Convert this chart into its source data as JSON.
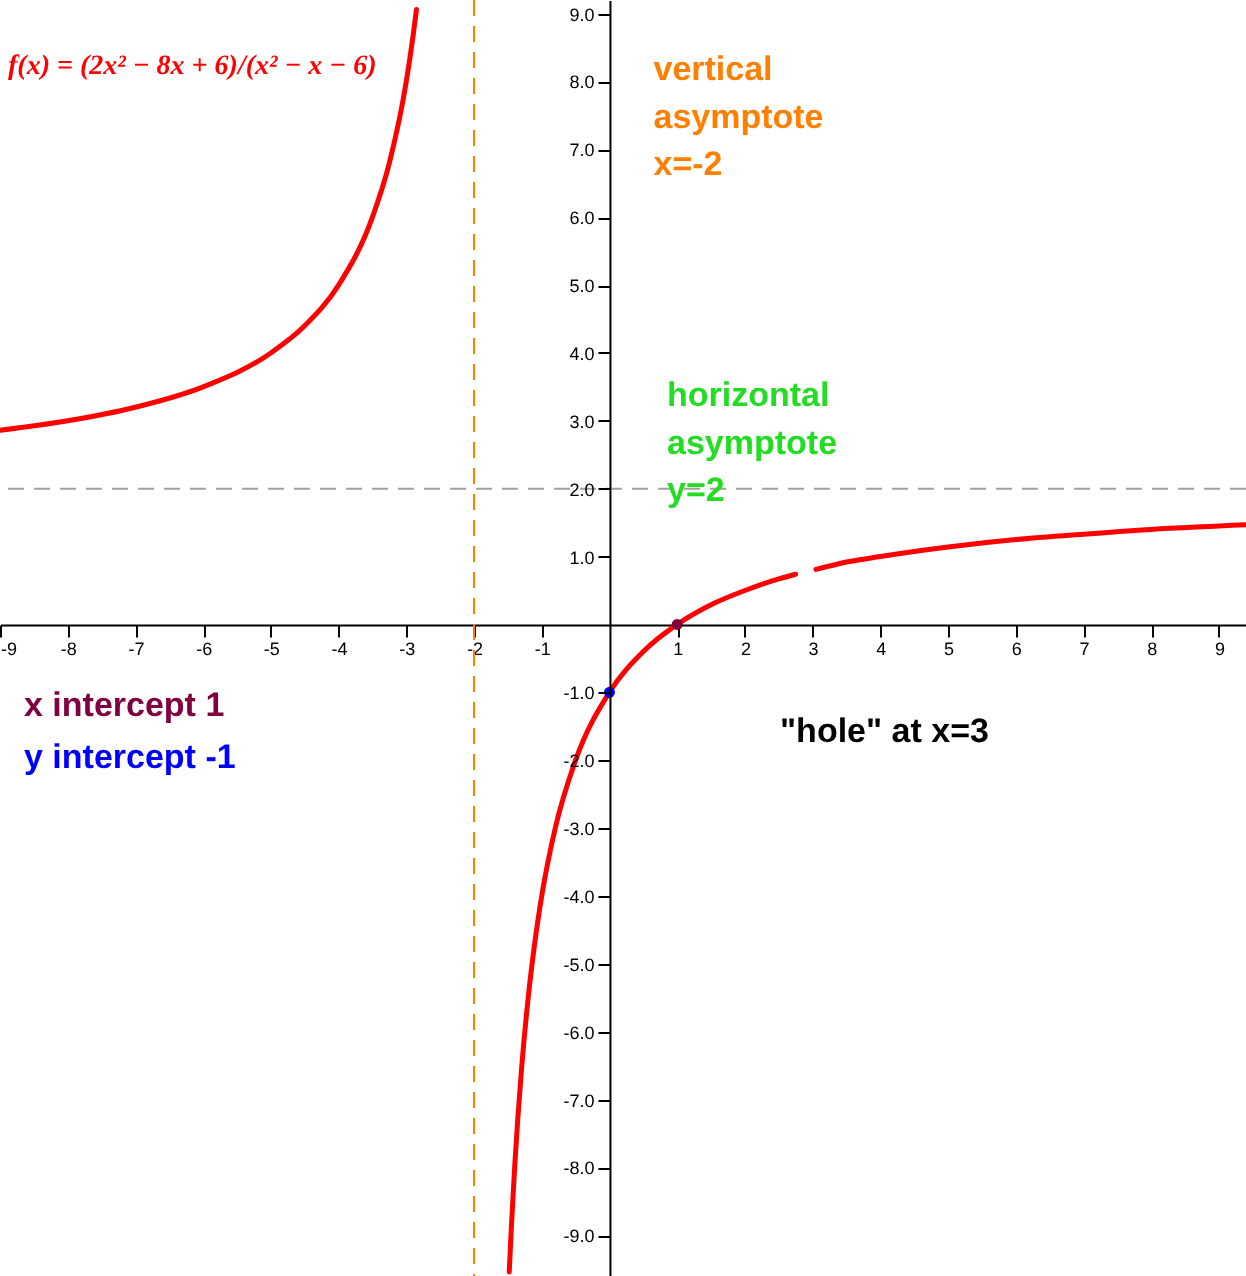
{
  "chart_data": {
    "type": "line",
    "title": "f(x) = (2x² − 8x + 6)/(x² − x − 6)",
    "series": [
      {
        "color": "#ff0000",
        "x": [
          -9,
          -8,
          -7,
          -6,
          -5,
          -4.5,
          -4,
          -3.5,
          -3.25,
          -3,
          -2.95,
          -2.9,
          -2.85,
          -2,
          -1.48,
          -1.45,
          -1.4,
          -1.3,
          -1.2,
          -1.1,
          -1,
          -0.8,
          -0.5,
          0,
          0.5,
          1,
          1.5,
          2,
          2.5,
          2.75,
          3,
          3.05,
          3.5,
          4,
          5,
          6,
          7,
          8,
          9,
          9.4
        ],
        "values": [
          2.86,
          3.0,
          3.2,
          3.5,
          4.0,
          4.4,
          5.0,
          6.0,
          6.8,
          8.0,
          8.32,
          8.67,
          9.06,
          null,
          -9.54,
          -8.91,
          -8.0,
          -6.57,
          -5.5,
          -4.67,
          -4.0,
          -3.0,
          -2.0,
          -1.0,
          -0.4,
          0.0,
          0.29,
          0.5,
          0.67,
          0.74,
          null,
          0.81,
          0.92,
          1.0,
          1.14,
          1.25,
          1.33,
          1.4,
          1.45,
          1.47
        ]
      },
      {
        "type": "scatter",
        "color": "#0000ff",
        "marker": "circle",
        "x": [
          0
        ],
        "values": [
          -1
        ]
      },
      {
        "type": "scatter",
        "color": "#800040",
        "marker": "circle",
        "x": [
          1
        ],
        "values": [
          0
        ]
      }
    ],
    "xlim": [
      -9,
      9.4
    ],
    "ylim": [
      -9.6,
      9.2
    ],
    "xticks": [
      -9,
      -8,
      -7,
      -6,
      -5,
      -4,
      -3,
      -2,
      -1,
      1,
      2,
      3,
      4,
      5,
      6,
      7,
      8,
      9
    ],
    "yticks": [
      {
        "value": -9,
        "label": "-9.0"
      },
      {
        "value": -8,
        "label": "-8.0"
      },
      {
        "value": -7,
        "label": "-7.0"
      },
      {
        "value": -6,
        "label": "-6.0"
      },
      {
        "value": -5,
        "label": "-5.0"
      },
      {
        "value": -4,
        "label": "-4.0"
      },
      {
        "value": -3,
        "label": "-3.0"
      },
      {
        "value": -2,
        "label": "-2.0"
      },
      {
        "value": -1,
        "label": "-1.0"
      },
      {
        "value": 1,
        "label": "1.0"
      },
      {
        "value": 2,
        "label": "2.0"
      },
      {
        "value": 3,
        "label": "3.0"
      },
      {
        "value": 4,
        "label": "4.0"
      },
      {
        "value": 5,
        "label": "5.0"
      },
      {
        "value": 6,
        "label": "6.0"
      },
      {
        "value": 7,
        "label": "7.0"
      },
      {
        "value": 8,
        "label": "8.0"
      },
      {
        "value": 9,
        "label": "9.0"
      }
    ],
    "ref_lines": [
      {
        "axis": "x",
        "value": -2,
        "label": "vertical\nasymptote\nx=-2",
        "color": "#ff8000",
        "line_style": "dashed"
      },
      {
        "axis": "y",
        "value": 2,
        "label": "horizontal\nasymptote\ny=2",
        "color": "#a0a0a0",
        "line_style": "dashed"
      }
    ],
    "annotations": [
      "x intercept 1",
      "y intercept -1",
      "\"hole\" at x=3"
    ],
    "grid": false
  }
}
